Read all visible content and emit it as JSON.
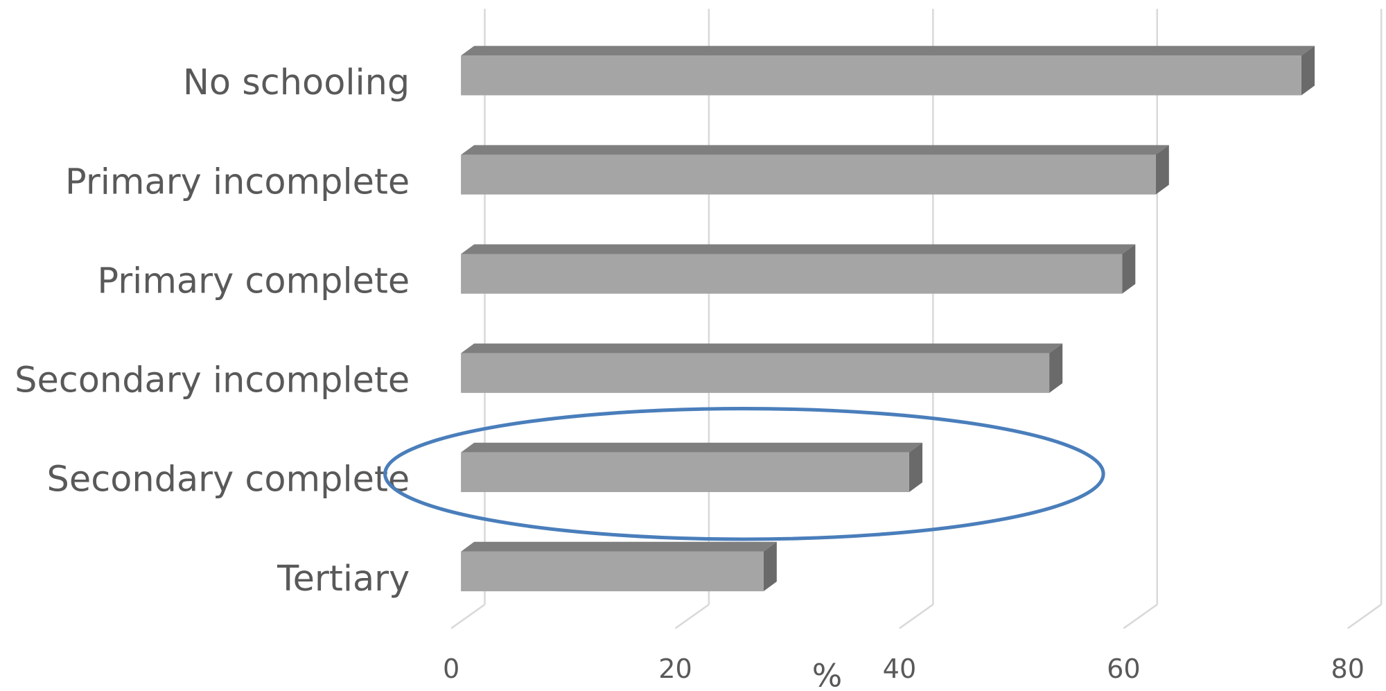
{
  "chart_data": {
    "type": "bar3d",
    "orientation": "horizontal",
    "categories": [
      "No schooling",
      "Primary incomplete",
      "Primary complete",
      "Secondary incomplete",
      "Secondary complete",
      "Tertiary"
    ],
    "values": [
      75,
      62,
      59,
      52.5,
      40,
      27
    ],
    "color": "#a5a5a5",
    "xlabel": "%",
    "xlim": [
      0,
      80
    ],
    "xticks": [
      0,
      20,
      40,
      60,
      80
    ],
    "grid": true
  }
}
